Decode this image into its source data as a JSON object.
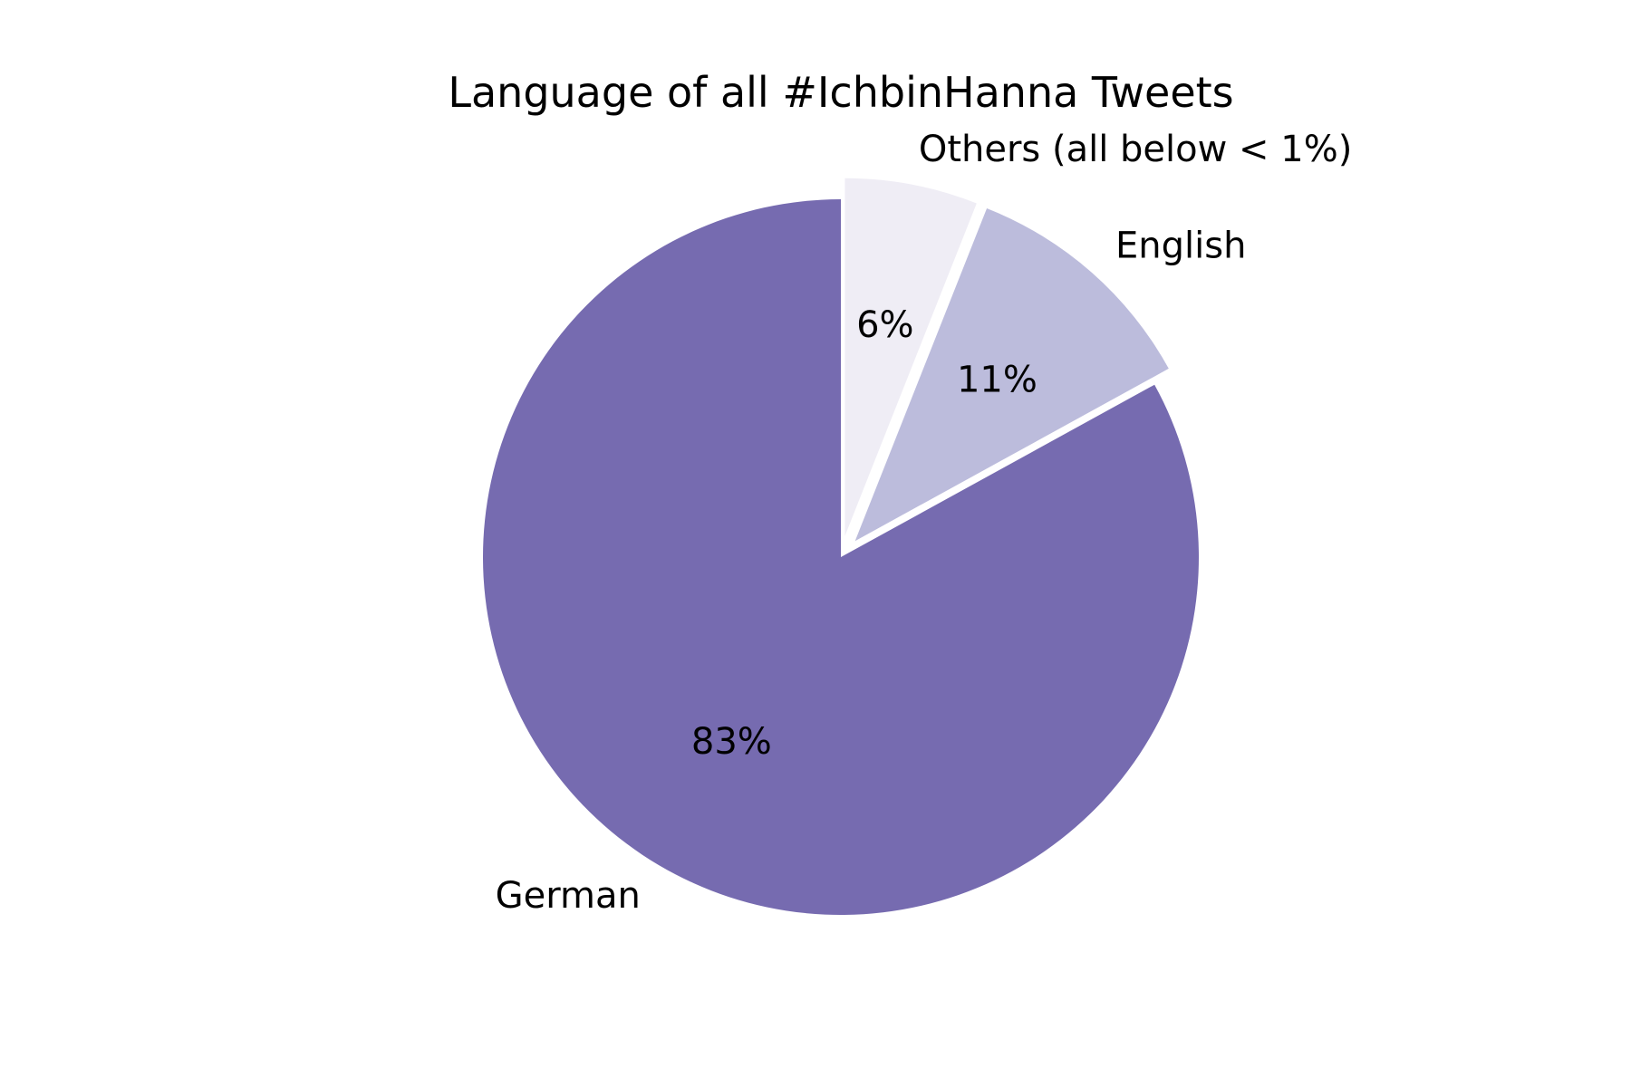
{
  "chart_data": {
    "type": "pie",
    "title": "Language of all #IchbinHanna Tweets",
    "slices": [
      {
        "label": "German",
        "value": 83,
        "pct_label": "83%",
        "color": "#766bb0",
        "exploded": false
      },
      {
        "label": "English",
        "value": 11,
        "pct_label": "11%",
        "color": "#bcbcdc",
        "exploded": true
      },
      {
        "label": "Others (all below < 1%)",
        "value": 6,
        "pct_label": "6%",
        "color": "#efedf5",
        "exploded": true
      }
    ],
    "start_angle": "top",
    "direction": "counterclockwise",
    "legend": "none"
  }
}
